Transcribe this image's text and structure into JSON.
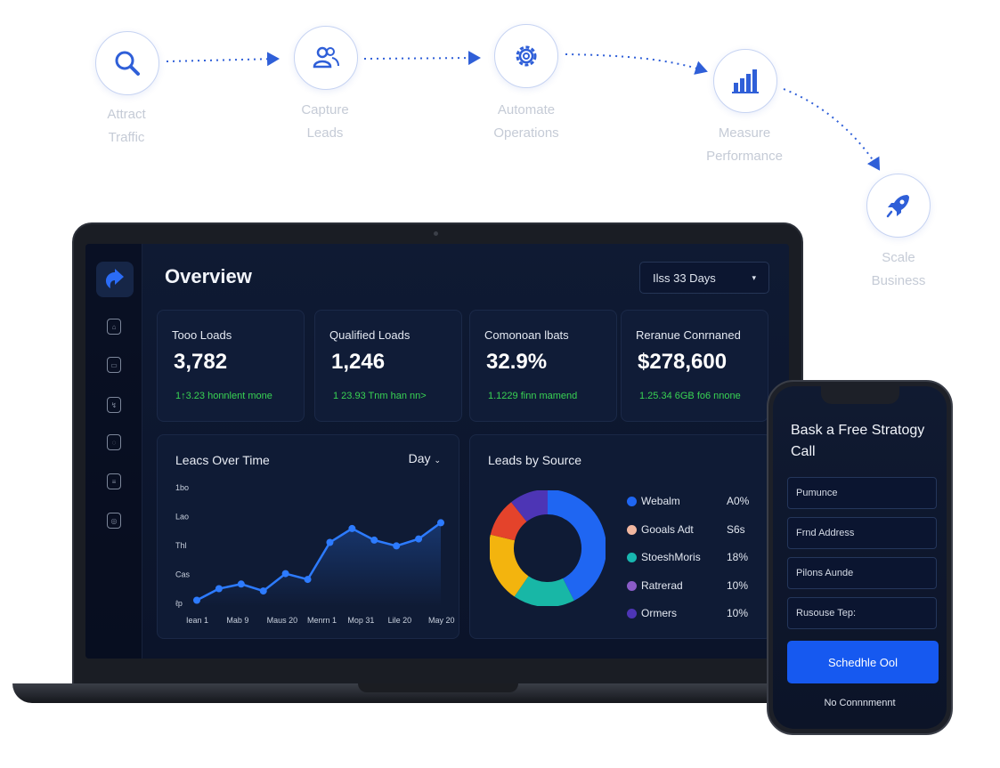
{
  "flow": {
    "steps": [
      {
        "label_line1": "Attract",
        "label_line2": "Traffic",
        "icon": "search-icon"
      },
      {
        "label_line1": "Capture",
        "label_line2": "Leads",
        "icon": "users-icon"
      },
      {
        "label_line1": "Automate",
        "label_line2": "Operations",
        "icon": "gear-icon"
      },
      {
        "label_line1": "Measure",
        "label_line2": "Performance",
        "icon": "bar-chart-icon"
      },
      {
        "label_line1": "Scale",
        "label_line2": "Business",
        "icon": "rocket-icon"
      }
    ],
    "accent": "#2f5fd8"
  },
  "dashboard": {
    "title": "Overview",
    "range": "Ilss 33 Days",
    "sidebar_icons": [
      "home-icon",
      "leads-icon",
      "automation-icon",
      "reports-icon",
      "documents-icon",
      "settings-icon"
    ],
    "kpis": [
      {
        "label": "Tooo Loads",
        "value": "3,782",
        "delta": "1↑3.23 honnlent mone"
      },
      {
        "label": "Qualified Loads",
        "value": "1,246",
        "delta": "1 23.93 Tnm han nn>"
      },
      {
        "label": "Comonoan lbats",
        "value": "32.9%",
        "delta": "1.1229 finn mamend"
      },
      {
        "label": "Reranue Conrnaned",
        "value": "$278,600",
        "delta": "1.25.34 6GB fo6 nnone"
      }
    ],
    "positive_color": "#39d353",
    "line_panel": {
      "title": "Leacs Over Time",
      "filter": "Day"
    },
    "donut_panel": {
      "title": "Leads by Source"
    }
  },
  "chart_data": [
    {
      "type": "line",
      "title": "Leacs Over Time",
      "yticks": [
        "1bo",
        "Lao",
        "Thl",
        "Cas",
        "ℓp"
      ],
      "xticks": [
        "Iean 1",
        "Mab 9",
        "Maus 20",
        "Menrn 1",
        "Mop 31",
        "Lile 20",
        "May 20"
      ],
      "series": [
        {
          "values": [
            5,
            15,
            19,
            13,
            28,
            23,
            55,
            67,
            57,
            52,
            58,
            72
          ],
          "color": "#2d7bff"
        }
      ],
      "ylim": [
        0,
        100
      ]
    },
    {
      "type": "pie",
      "title": "Leads by Source",
      "labels": [
        "Webalm",
        "Gooals Adt",
        "StoeshMoris",
        "Ratrerad",
        "Ormers"
      ],
      "legend_values": [
        "A0%",
        "S6s",
        "18%",
        "10%",
        "10%"
      ],
      "values": [
        40,
        16,
        18,
        10,
        10
      ],
      "colors": [
        "#1f66f2",
        "#18b7a6",
        "#f3b40e",
        "#e4432b",
        "#4d35b5"
      ],
      "legend_colors": [
        "#1f66f2",
        "#f1b7a0",
        "#18b7b0",
        "#8a5cc8",
        "#4d35b5"
      ]
    }
  ],
  "phone": {
    "heading": "Bask a Free Stratogy Call",
    "fields": [
      "Pumunce",
      "Frnd Address",
      "Pilons Aunde",
      "Rusouse Tep:"
    ],
    "cta": "Schedhle Ool",
    "note": "No Connnmennt"
  }
}
